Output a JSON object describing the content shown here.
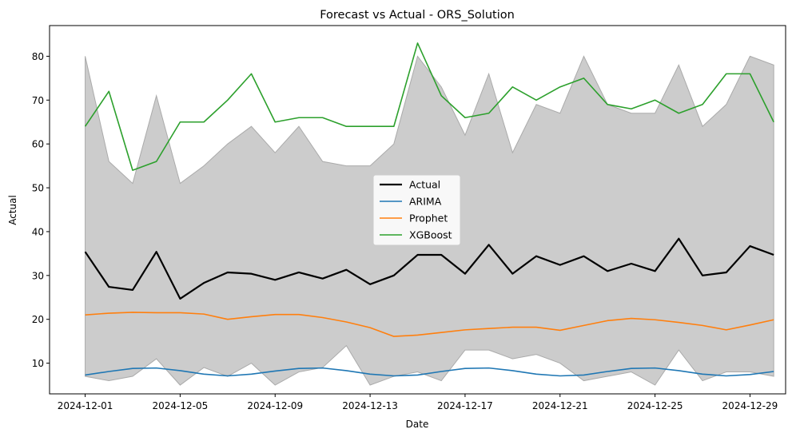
{
  "chart_data": {
    "type": "line",
    "title": "Forecast vs Actual - ORS_Solution",
    "xlabel": "Date",
    "ylabel": "Actual",
    "x_start": "2024-12-01",
    "x_tick_labels": [
      "2024-12-01",
      "2024-12-05",
      "2024-12-09",
      "2024-12-13",
      "2024-12-17",
      "2024-12-21",
      "2024-12-25",
      "2024-12-29"
    ],
    "xlim": [
      "2024-11-29",
      "2024-12-31"
    ],
    "ylim": [
      3,
      87
    ],
    "y_ticks": [
      10,
      20,
      30,
      40,
      50,
      60,
      70,
      80
    ],
    "grid": false,
    "legend_position": "center",
    "band": {
      "color": "#cccccc",
      "edge_color": "#aaaaaa",
      "lower": [
        7,
        6,
        7,
        11,
        5,
        9,
        7,
        10,
        5,
        8,
        9,
        14,
        5,
        7,
        8,
        6,
        13,
        13,
        11,
        12,
        10,
        6,
        7,
        8,
        5,
        13,
        6,
        8,
        8,
        7
      ],
      "upper": [
        80,
        56,
        51,
        71,
        51,
        55,
        60,
        64,
        58,
        64,
        56,
        55,
        55,
        60,
        80,
        73,
        62,
        76,
        58,
        69,
        67,
        80,
        69,
        67,
        67,
        78,
        64,
        69,
        80,
        78
      ]
    },
    "series": [
      {
        "name": "Actual",
        "color": "#000000",
        "width": 2.2,
        "values": [
          35.4,
          27.4,
          26.7,
          35.4,
          24.7,
          28.3,
          30.7,
          30.4,
          29.0,
          30.7,
          29.3,
          31.3,
          28.0,
          30.0,
          34.7,
          34.7,
          30.4,
          37.0,
          30.4,
          34.4,
          32.4,
          34.4,
          31.0,
          32.7,
          31.0,
          38.4,
          30.0,
          30.7,
          36.7,
          34.7
        ]
      },
      {
        "name": "ARIMA",
        "color": "#1f77b4",
        "width": 1.6,
        "values": [
          7.3,
          8.1,
          8.8,
          8.9,
          8.3,
          7.5,
          7.1,
          7.5,
          8.2,
          8.8,
          8.9,
          8.3,
          7.5,
          7.1,
          7.3,
          8.1,
          8.8,
          8.9,
          8.3,
          7.5,
          7.1,
          7.3,
          8.1,
          8.8,
          8.9,
          8.3,
          7.5,
          7.1,
          7.4,
          8.1
        ]
      },
      {
        "name": "Prophet",
        "color": "#ff7f0e",
        "width": 1.6,
        "values": [
          21.0,
          21.4,
          21.6,
          21.5,
          21.5,
          21.2,
          20.0,
          20.6,
          21.1,
          21.1,
          20.4,
          19.4,
          18.1,
          16.1,
          16.4,
          17.0,
          17.6,
          17.9,
          18.2,
          18.2,
          17.5,
          18.6,
          19.7,
          20.2,
          19.9,
          19.3,
          18.6,
          17.6,
          18.7,
          19.9
        ]
      },
      {
        "name": "XGBoost",
        "color": "#2ca02c",
        "width": 1.6,
        "values": [
          64,
          72,
          54,
          56,
          65,
          65,
          70,
          76,
          65,
          66,
          66,
          64,
          64,
          64,
          83,
          71,
          66,
          67,
          73,
          70,
          73,
          75,
          69,
          68,
          70,
          67,
          69,
          76,
          76,
          65
        ]
      }
    ]
  }
}
